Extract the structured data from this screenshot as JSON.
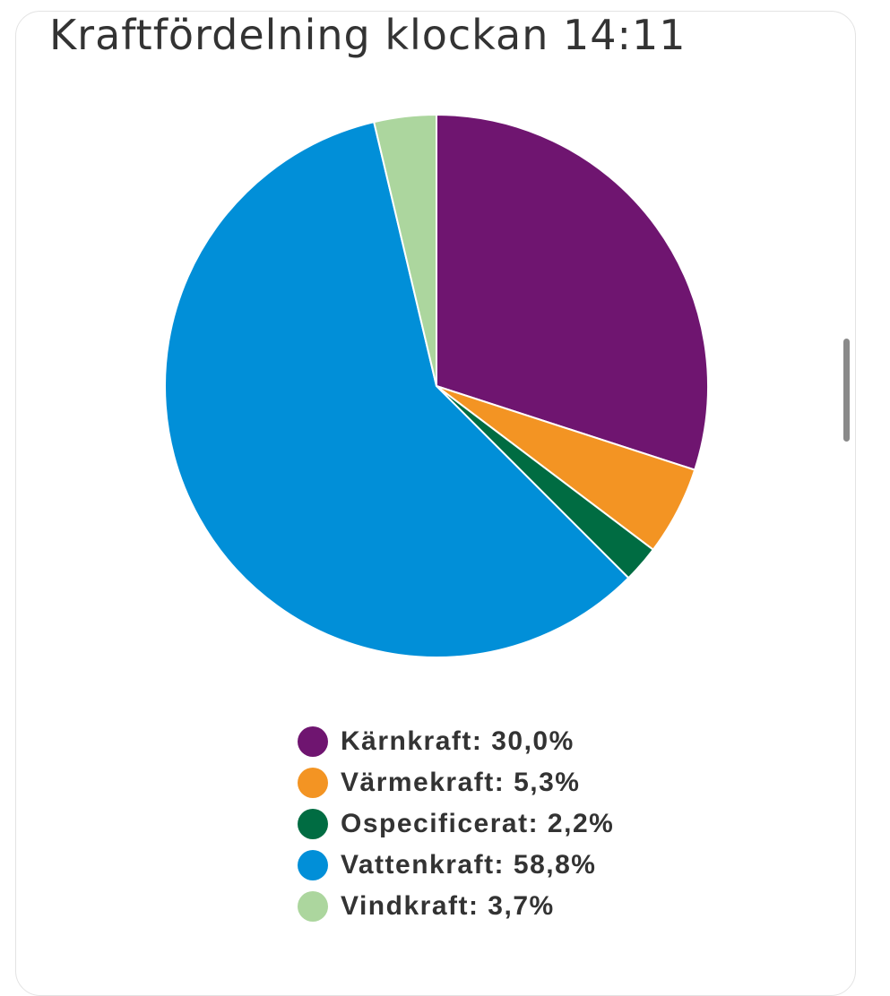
{
  "chart_data": {
    "type": "pie",
    "title": "Kraftfördelning klockan 14:11",
    "legend_position": "bottom",
    "slices": [
      {
        "label": "Kärnkraft: 30,0%",
        "value": 30.0,
        "color": "#6f1570"
      },
      {
        "label": "Värmekraft: 5,3%",
        "value": 5.3,
        "color": "#f39423"
      },
      {
        "label": "Ospecificerat: 2,2%",
        "value": 2.2,
        "color": "#006c42"
      },
      {
        "label": "Vattenkraft: 58,8%",
        "value": 58.8,
        "color": "#018fd8"
      },
      {
        "label": "Vindkraft: 3,7%",
        "value": 3.7,
        "color": "#acd69e"
      }
    ]
  }
}
